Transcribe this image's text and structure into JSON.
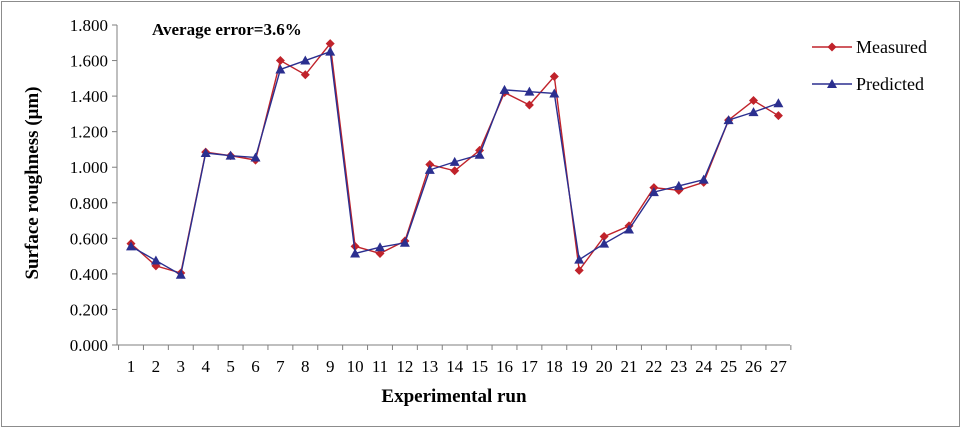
{
  "chart_data": {
    "type": "line",
    "title": "",
    "annotation": "Average error=3.6%",
    "xlabel": "Experimental run",
    "ylabel": "Surface roughness (μm)",
    "ylim": [
      0,
      1.8
    ],
    "yticks": [
      "0.000",
      "0.200",
      "0.400",
      "0.600",
      "0.800",
      "1.000",
      "1.200",
      "1.400",
      "1.600",
      "1.800"
    ],
    "categories": [
      "1",
      "2",
      "3",
      "4",
      "5",
      "6",
      "7",
      "8",
      "9",
      "10",
      "11",
      "12",
      "13",
      "14",
      "15",
      "16",
      "17",
      "18",
      "19",
      "20",
      "21",
      "22",
      "23",
      "24",
      "25",
      "26",
      "27"
    ],
    "grid": false,
    "legend_position": "right",
    "series": [
      {
        "name": "Measured",
        "color": "#c0232b",
        "marker": "diamond",
        "values": [
          0.57,
          0.445,
          0.405,
          1.085,
          1.065,
          1.04,
          1.6,
          1.52,
          1.695,
          0.555,
          0.515,
          0.585,
          1.015,
          0.98,
          1.095,
          1.42,
          1.35,
          1.51,
          0.42,
          0.61,
          0.67,
          0.885,
          0.87,
          0.915,
          1.265,
          1.375,
          1.29
        ]
      },
      {
        "name": "Predicted",
        "color": "#2b2f8f",
        "marker": "triangle",
        "values": [
          0.555,
          0.475,
          0.395,
          1.08,
          1.065,
          1.055,
          1.55,
          1.6,
          1.65,
          0.515,
          0.55,
          0.575,
          0.985,
          1.03,
          1.07,
          1.435,
          1.425,
          1.415,
          0.48,
          0.57,
          0.65,
          0.86,
          0.895,
          0.93,
          1.265,
          1.31,
          1.36
        ]
      }
    ]
  }
}
